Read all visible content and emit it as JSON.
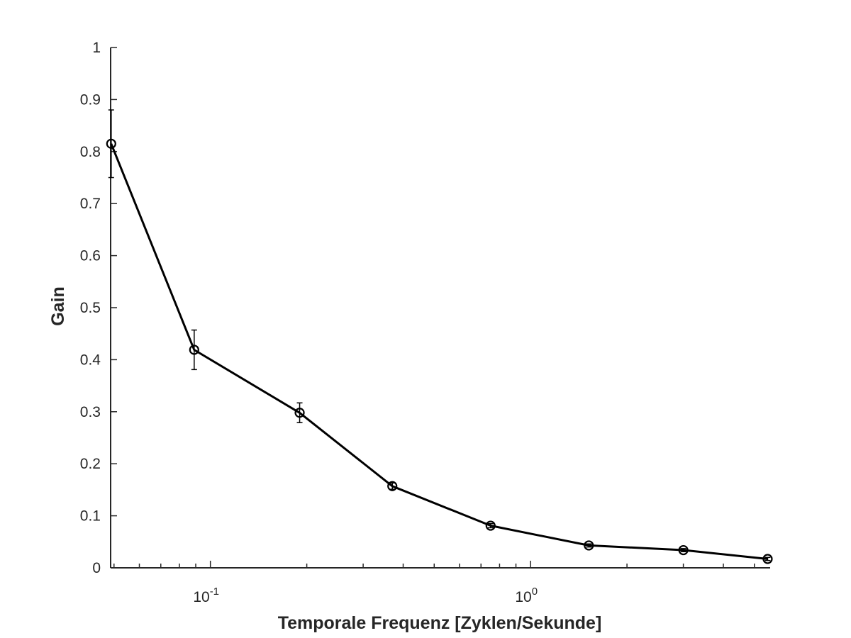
{
  "chart_data": {
    "type": "line",
    "xlabel": "Temporale Frequenz [Zyklen/Sekunde]",
    "ylabel": "Gain",
    "x_scale": "log",
    "xlim": [
      0.0488,
      5.6
    ],
    "ylim": [
      0,
      1
    ],
    "grid": false,
    "y_ticks": [
      "0",
      "0.1",
      "0.2",
      "0.3",
      "0.4",
      "0.5",
      "0.6",
      "0.7",
      "0.8",
      "0.9",
      "1"
    ],
    "x_ticks": [
      {
        "base": "10",
        "exponent": "-1",
        "value": 0.1
      },
      {
        "base": "10",
        "exponent": "0",
        "value": 1
      }
    ],
    "series": [
      {
        "color": "#000000",
        "marker": "circle",
        "x": [
          0.049,
          0.089,
          0.19,
          0.37,
          0.75,
          1.52,
          3.0,
          5.5
        ],
        "y": [
          0.815,
          0.419,
          0.298,
          0.157,
          0.081,
          0.043,
          0.034,
          0.017
        ],
        "err": [
          0.065,
          0.038,
          0.019,
          0.006,
          0.004,
          0.003,
          0.003,
          0.003
        ]
      }
    ]
  }
}
